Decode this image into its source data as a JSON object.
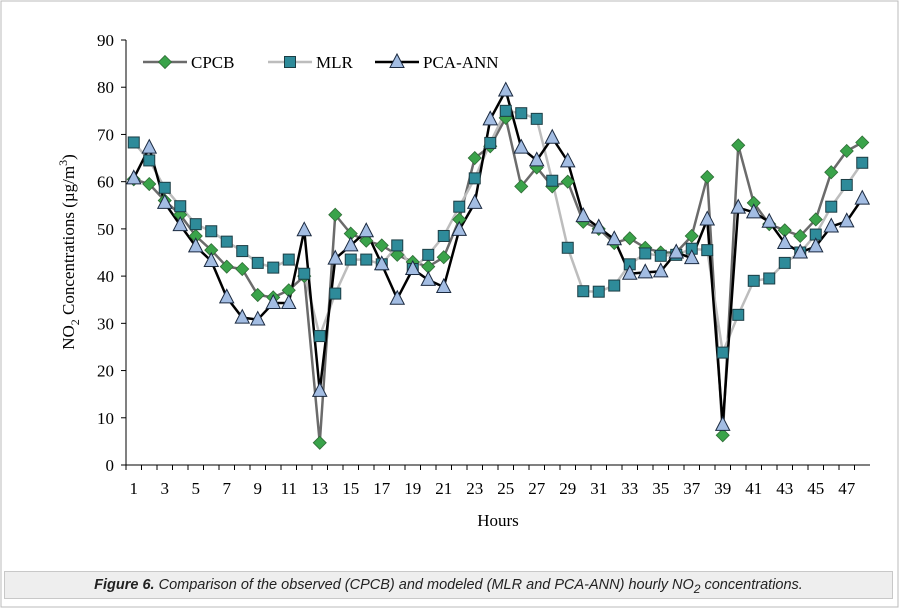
{
  "chart_data": {
    "type": "line",
    "y_label": {
      "text": "NO",
      "subscript": "2",
      "text2": " Concentrations (µg/m",
      "superscript": "3",
      "text3": ")"
    },
    "x_label": "Hours",
    "categories": [
      "1",
      null,
      "3",
      null,
      "5",
      null,
      "7",
      null,
      "9",
      null,
      "11",
      null,
      "13",
      null,
      "15",
      null,
      "17",
      null,
      "19",
      null,
      "21",
      null,
      "23",
      null,
      "25",
      null,
      "27",
      null,
      "29",
      null,
      "31",
      null,
      "33",
      null,
      "35",
      null,
      "37",
      null,
      "39",
      null,
      "41",
      null,
      "43",
      null,
      "45",
      null,
      "47",
      null
    ],
    "ylim": [
      0,
      90
    ],
    "yticks": [
      0,
      10,
      20,
      30,
      40,
      50,
      60,
      70,
      80,
      90
    ],
    "legend": "top-left",
    "series": [
      {
        "name": "CPCB",
        "color": "#3aa34a",
        "line_color": "#6b6b6b",
        "marker": "diamond",
        "values": [
          60.5,
          59.5,
          56,
          53,
          48.5,
          45.5,
          42,
          41.5,
          36,
          35.5,
          37,
          40,
          4.7,
          53,
          49,
          47.5,
          46.5,
          44.5,
          43,
          42,
          44,
          52,
          65,
          67.5,
          73.5,
          59,
          63,
          59,
          60,
          51.5,
          50,
          47,
          48,
          46,
          45,
          45,
          48.5,
          61,
          6.3,
          67.7,
          55.5,
          51,
          49.7,
          48.5,
          52,
          62,
          66.5,
          68.3
        ]
      },
      {
        "name": "MLR",
        "color": "#2e8b9a",
        "line_color": "#bdbdbd",
        "marker": "square",
        "values": [
          68.3,
          64.5,
          58.7,
          54.8,
          51,
          49.5,
          47.3,
          45.3,
          42.8,
          41.8,
          43.5,
          40.5,
          27.3,
          36.3,
          43.5,
          43.5,
          42.5,
          46.5,
          41.5,
          44.5,
          48.5,
          54.7,
          60.7,
          68.2,
          75,
          74.5,
          73.3,
          60.2,
          46,
          36.8,
          36.7,
          38,
          42.5,
          44.8,
          44.3,
          44.5,
          45.8,
          45.5,
          23.8,
          31.8,
          39,
          39.5,
          42.8,
          45,
          48.8,
          54.7,
          59.3,
          64
        ]
      },
      {
        "name": "PCA-ANN",
        "color": "#a3bde3",
        "line_color": "#000000",
        "marker": "triangle",
        "values": [
          60.7,
          67.2,
          55.5,
          50.8,
          46.3,
          43.2,
          35.5,
          31.2,
          30.8,
          34.3,
          34.3,
          49.7,
          15.7,
          43.7,
          46.5,
          49.5,
          42.5,
          35.2,
          41.5,
          39.2,
          37.7,
          49.8,
          55.5,
          73.2,
          79.3,
          67.2,
          64.5,
          69.3,
          64.3,
          52.7,
          50.3,
          47.8,
          40.5,
          40.8,
          41,
          45,
          43.8,
          52,
          8.5,
          54.5,
          53.5,
          51.5,
          47,
          45,
          46.3,
          50.5,
          51.6,
          56.4
        ]
      }
    ]
  },
  "caption": {
    "label": "Figure 6.",
    "text": "Comparison of the observed (CPCB) and modeled (MLR and PCA-ANN) hourly NO",
    "subscript": "2",
    "text2": " concentrations."
  }
}
